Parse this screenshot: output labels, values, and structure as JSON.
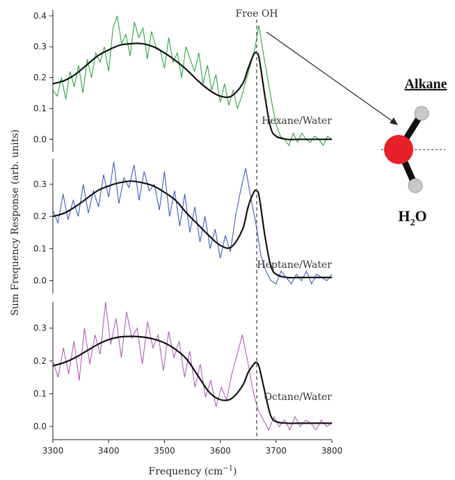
{
  "chart_data": {
    "type": "line",
    "xlabel": "Frequency (cm",
    "xlabel_sup": "−1",
    "xlabel_close": ")",
    "ylabel": "Sum Frequency Response (arb. units)",
    "xlim": [
      3300,
      3800
    ],
    "xticks": [
      "3300",
      "3400",
      "3500",
      "3600",
      "3700",
      "3800"
    ],
    "annotation": "Free OH",
    "annotation_x": 3665,
    "panels": [
      {
        "label": "Hexane/Water",
        "color": "#2aa540",
        "ylim": [
          -0.04,
          0.42
        ],
        "yticks": [
          0.0,
          0.1,
          0.2,
          0.3,
          0.4
        ],
        "ytick_labels": [
          "0.0",
          "0.1",
          "0.2",
          "0.3",
          "0.4"
        ],
        "fit": {
          "x": [
            3300,
            3320,
            3340,
            3360,
            3380,
            3400,
            3420,
            3440,
            3460,
            3480,
            3500,
            3520,
            3540,
            3560,
            3580,
            3600,
            3620,
            3640,
            3650,
            3660,
            3665,
            3670,
            3680,
            3690,
            3700,
            3720,
            3740,
            3760,
            3780,
            3800
          ],
          "y": [
            0.18,
            0.19,
            0.21,
            0.24,
            0.27,
            0.29,
            0.305,
            0.31,
            0.31,
            0.3,
            0.28,
            0.255,
            0.225,
            0.19,
            0.16,
            0.14,
            0.14,
            0.18,
            0.23,
            0.275,
            0.28,
            0.26,
            0.14,
            0.04,
            0.01,
            0.0,
            0.0,
            0.0,
            0.0,
            0.0
          ]
        },
        "data": [
          0.16,
          0.14,
          0.2,
          0.13,
          0.22,
          0.17,
          0.24,
          0.15,
          0.26,
          0.2,
          0.28,
          0.25,
          0.3,
          0.22,
          0.36,
          0.4,
          0.31,
          0.34,
          0.27,
          0.38,
          0.33,
          0.36,
          0.26,
          0.35,
          0.3,
          0.29,
          0.23,
          0.33,
          0.25,
          0.28,
          0.2,
          0.3,
          0.26,
          0.22,
          0.28,
          0.18,
          0.24,
          0.16,
          0.21,
          0.12,
          0.18,
          0.11,
          0.16,
          0.1,
          0.14,
          0.19,
          0.24,
          0.29,
          0.37,
          0.28,
          0.2,
          0.12,
          0.05,
          0.01,
          0.0,
          -0.02,
          0.02,
          -0.01,
          0.02,
          0.0,
          -0.01,
          0.01,
          0.0,
          -0.02,
          0.01,
          0.0
        ],
        "data_x_range": [
          3300,
          3800
        ]
      },
      {
        "label": "Heptane/Water",
        "color": "#3b5bbd",
        "ylim": [
          -0.04,
          0.38
        ],
        "yticks": [
          0.0,
          0.1,
          0.2,
          0.3
        ],
        "ytick_labels": [
          "0.0",
          "0.1",
          "0.2",
          "0.3"
        ],
        "fit": {
          "x": [
            3300,
            3320,
            3340,
            3360,
            3380,
            3400,
            3420,
            3440,
            3460,
            3480,
            3500,
            3520,
            3540,
            3560,
            3580,
            3600,
            3620,
            3640,
            3650,
            3660,
            3665,
            3670,
            3680,
            3690,
            3700,
            3720,
            3740,
            3760,
            3780,
            3800
          ],
          "y": [
            0.19,
            0.2,
            0.22,
            0.245,
            0.27,
            0.285,
            0.295,
            0.3,
            0.295,
            0.285,
            0.265,
            0.24,
            0.2,
            0.165,
            0.13,
            0.1,
            0.095,
            0.15,
            0.22,
            0.265,
            0.27,
            0.25,
            0.13,
            0.04,
            0.01,
            0.0,
            0.0,
            0.0,
            0.0,
            0.0
          ],
          "y_offset": 0.01
        },
        "data": [
          0.22,
          0.18,
          0.27,
          0.19,
          0.25,
          0.2,
          0.3,
          0.21,
          0.28,
          0.23,
          0.33,
          0.26,
          0.37,
          0.24,
          0.32,
          0.29,
          0.36,
          0.25,
          0.34,
          0.28,
          0.3,
          0.22,
          0.34,
          0.2,
          0.28,
          0.17,
          0.27,
          0.15,
          0.23,
          0.12,
          0.2,
          0.1,
          0.16,
          0.07,
          0.14,
          0.09,
          0.2,
          0.28,
          0.35,
          0.26,
          0.18,
          0.08,
          0.03,
          0.0,
          -0.01,
          0.03,
          0.01,
          -0.01,
          0.02,
          0.0,
          0.03,
          -0.01,
          0.02,
          0.01,
          0.0,
          0.02
        ],
        "data_x_range": [
          3300,
          3800
        ]
      },
      {
        "label": "Octane/Water",
        "color": "#b05cb8",
        "ylim": [
          -0.04,
          0.38
        ],
        "yticks": [
          0.0,
          0.1,
          0.2,
          0.3
        ],
        "ytick_labels": [
          "0.0",
          "0.1",
          "0.2",
          "0.3"
        ],
        "fit": {
          "x": [
            3300,
            3320,
            3340,
            3360,
            3380,
            3400,
            3420,
            3440,
            3460,
            3480,
            3500,
            3520,
            3540,
            3560,
            3580,
            3600,
            3620,
            3640,
            3650,
            3660,
            3665,
            3670,
            3680,
            3690,
            3700,
            3720,
            3740,
            3760,
            3780,
            3800
          ],
          "y": [
            0.18,
            0.19,
            0.205,
            0.225,
            0.245,
            0.26,
            0.268,
            0.27,
            0.268,
            0.262,
            0.25,
            0.23,
            0.2,
            0.15,
            0.1,
            0.077,
            0.08,
            0.12,
            0.16,
            0.185,
            0.19,
            0.175,
            0.1,
            0.03,
            0.01,
            0.005,
            0.005,
            0.005,
            0.005,
            0.005
          ],
          "y_offset": 0.005
        },
        "data": [
          0.2,
          0.15,
          0.24,
          0.16,
          0.26,
          0.14,
          0.3,
          0.19,
          0.28,
          0.22,
          0.38,
          0.25,
          0.33,
          0.21,
          0.35,
          0.27,
          0.3,
          0.19,
          0.32,
          0.24,
          0.28,
          0.17,
          0.29,
          0.21,
          0.26,
          0.15,
          0.23,
          0.12,
          0.19,
          0.09,
          0.14,
          0.06,
          0.12,
          0.08,
          0.16,
          0.22,
          0.28,
          0.2,
          0.11,
          0.05,
          0.02,
          -0.01,
          0.03,
          0.0,
          0.02,
          -0.01,
          0.03,
          0.0,
          0.02,
          0.01,
          -0.01,
          0.02,
          0.0,
          0.01
        ],
        "data_x_range": [
          3300,
          3800
        ]
      }
    ]
  },
  "molecule": {
    "top_label": "Alkane",
    "bottom_label_main": "H",
    "bottom_label_sub": "2",
    "bottom_label_end": "O",
    "oxygen_color": "#e8202a",
    "hydrogen_color": "#c8c8c8"
  }
}
